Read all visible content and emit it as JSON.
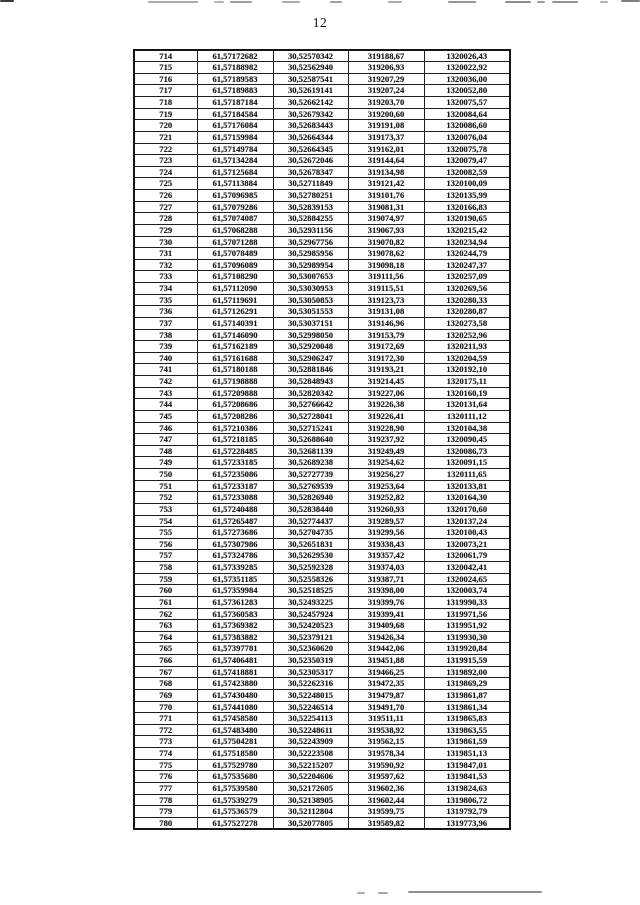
{
  "page": {
    "number": "12"
  },
  "table": {
    "rows": [
      [
        "714",
        "61,57172682",
        "30,52570342",
        "319188,67",
        "1320026,43"
      ],
      [
        "715",
        "61,57188982",
        "30,52562940",
        "319206,93",
        "1320022,92"
      ],
      [
        "716",
        "61,57189583",
        "30,52587541",
        "319207,29",
        "1320036,00"
      ],
      [
        "717",
        "61,57189883",
        "30,52619141",
        "319207,24",
        "1320052,80"
      ],
      [
        "718",
        "61,57187184",
        "30,52662142",
        "319203,70",
        "1320075,57"
      ],
      [
        "719",
        "61,57184584",
        "30,52679342",
        "319200,60",
        "1320084,64"
      ],
      [
        "720",
        "61,57176084",
        "30,52683443",
        "319191,08",
        "1320086,60"
      ],
      [
        "721",
        "61,57159984",
        "30,52664344",
        "319173,37",
        "1320076,04"
      ],
      [
        "722",
        "61,57149784",
        "30,52664345",
        "319162,01",
        "1320075,78"
      ],
      [
        "723",
        "61,57134284",
        "30,52672046",
        "319144,64",
        "1320079,47"
      ],
      [
        "724",
        "61,57125684",
        "30,52678347",
        "319134,98",
        "1320082,59"
      ],
      [
        "725",
        "61,57113884",
        "30,52711849",
        "319121,42",
        "1320100,09"
      ],
      [
        "726",
        "61,57096985",
        "30,52780251",
        "319101,76",
        "1320135,99"
      ],
      [
        "727",
        "61,57079286",
        "30,52839153",
        "319081,31",
        "1320166,83"
      ],
      [
        "728",
        "61,57074087",
        "30,52884255",
        "319074,97",
        "1320190,65"
      ],
      [
        "729",
        "61,57068288",
        "30,52931156",
        "319067,93",
        "1320215,42"
      ],
      [
        "730",
        "61,57071288",
        "30,52967756",
        "319070,82",
        "1320234,94"
      ],
      [
        "731",
        "61,57078489",
        "30,52985956",
        "319078,62",
        "1320244,79"
      ],
      [
        "732",
        "61,57096089",
        "30,52989954",
        "319098,18",
        "1320247,37"
      ],
      [
        "733",
        "61,57108290",
        "30,53007653",
        "319111,56",
        "1320257,09"
      ],
      [
        "734",
        "61,57112090",
        "30,53030953",
        "319115,51",
        "1320269,56"
      ],
      [
        "735",
        "61,57119691",
        "30,53050853",
        "319123,73",
        "1320280,33"
      ],
      [
        "736",
        "61,57126291",
        "30,53051553",
        "319131,08",
        "1320280,87"
      ],
      [
        "737",
        "61,57140391",
        "30,53037151",
        "319146,96",
        "1320273,58"
      ],
      [
        "738",
        "61,57146090",
        "30,52998050",
        "319153,79",
        "1320252,96"
      ],
      [
        "739",
        "61,57162189",
        "30,52920048",
        "319172,69",
        "1320211,93"
      ],
      [
        "740",
        "61,57161688",
        "30,52906247",
        "319172,30",
        "1320204,59"
      ],
      [
        "741",
        "61,57180188",
        "30,52881846",
        "319193,21",
        "1320192,10"
      ],
      [
        "742",
        "61,57198888",
        "30,52848943",
        "319214,45",
        "1320175,11"
      ],
      [
        "743",
        "61,57209888",
        "30,52820342",
        "319227,06",
        "1320160,19"
      ],
      [
        "744",
        "61,57208686",
        "30,52766642",
        "319226,38",
        "1320131,64"
      ],
      [
        "745",
        "61,57208286",
        "30,52728041",
        "319226,41",
        "1320111,12"
      ],
      [
        "746",
        "61,57210386",
        "30,52715241",
        "319228,90",
        "1320104,38"
      ],
      [
        "747",
        "61,57218185",
        "30,52688640",
        "319237,92",
        "1320090,45"
      ],
      [
        "748",
        "61,57228485",
        "30,52681139",
        "319249,49",
        "1320086,73"
      ],
      [
        "749",
        "61,57233185",
        "30,52689238",
        "319254,62",
        "1320091,15"
      ],
      [
        "750",
        "61,57235086",
        "30,52727739",
        "319256,27",
        "1320111,65"
      ],
      [
        "751",
        "61,57233187",
        "30,52769539",
        "319253,64",
        "1320133,81"
      ],
      [
        "752",
        "61,57233088",
        "30,52826940",
        "319252,82",
        "1320164,30"
      ],
      [
        "753",
        "61,57240488",
        "30,52838440",
        "319260,93",
        "1320170,60"
      ],
      [
        "754",
        "61,57265487",
        "30,52774437",
        "319289,57",
        "1320137,24"
      ],
      [
        "755",
        "61,57273686",
        "30,52704735",
        "319299,56",
        "1320100,43"
      ],
      [
        "756",
        "61,57307986",
        "30,52651831",
        "319338,43",
        "1320073,21"
      ],
      [
        "757",
        "61,57324786",
        "30,52629530",
        "319357,42",
        "1320061,79"
      ],
      [
        "758",
        "61,57339285",
        "30,52592328",
        "319374,03",
        "1320042,41"
      ],
      [
        "759",
        "61,57351185",
        "30,52558326",
        "319387,71",
        "1320024,65"
      ],
      [
        "760",
        "61,57359984",
        "30,52518525",
        "319398,00",
        "1320003,74"
      ],
      [
        "761",
        "61,57361283",
        "30,52493225",
        "319399,76",
        "1319990,33"
      ],
      [
        "762",
        "61,57360583",
        "30,52457924",
        "319399,41",
        "1319971,56"
      ],
      [
        "763",
        "61,57369382",
        "30,52420523",
        "319409,68",
        "1319951,92"
      ],
      [
        "764",
        "61,57383882",
        "30,52379121",
        "319426,34",
        "1319930,30"
      ],
      [
        "765",
        "61,57397781",
        "30,52360620",
        "319442,06",
        "1319920,84"
      ],
      [
        "766",
        "61,57406481",
        "30,52350319",
        "319451,88",
        "1319915,59"
      ],
      [
        "767",
        "61,57418881",
        "30,52305317",
        "319466,25",
        "1319892,00"
      ],
      [
        "768",
        "61,57423880",
        "30,52262316",
        "319472,35",
        "1319869,29"
      ],
      [
        "769",
        "61,57430480",
        "30,52248015",
        "319479,87",
        "1319861,87"
      ],
      [
        "770",
        "61,57441080",
        "30,52246514",
        "319491,70",
        "1319861,34"
      ],
      [
        "771",
        "61,57458580",
        "30,52254113",
        "319511,11",
        "1319865,83"
      ],
      [
        "772",
        "61,57483480",
        "30,52248611",
        "319538,92",
        "1319863,55"
      ],
      [
        "773",
        "61,57504281",
        "30,52243909",
        "319562,15",
        "1319861,59"
      ],
      [
        "774",
        "61,57518580",
        "30,52223508",
        "319578,34",
        "1319851,13"
      ],
      [
        "775",
        "61,57529780",
        "30,52215207",
        "319590,92",
        "1319847,01"
      ],
      [
        "776",
        "61,57535680",
        "30,52204606",
        "319597,62",
        "1319841,53"
      ],
      [
        "777",
        "61,57539580",
        "30,52172605",
        "319602,36",
        "1319824,63"
      ],
      [
        "778",
        "61,57539279",
        "30,52138905",
        "319602,44",
        "1319806,72"
      ],
      [
        "779",
        "61,57536579",
        "30,52112804",
        "319599,75",
        "1319792,79"
      ],
      [
        "780",
        "61,57527278",
        "30,52077805",
        "319589,82",
        "1319773,96"
      ]
    ]
  }
}
